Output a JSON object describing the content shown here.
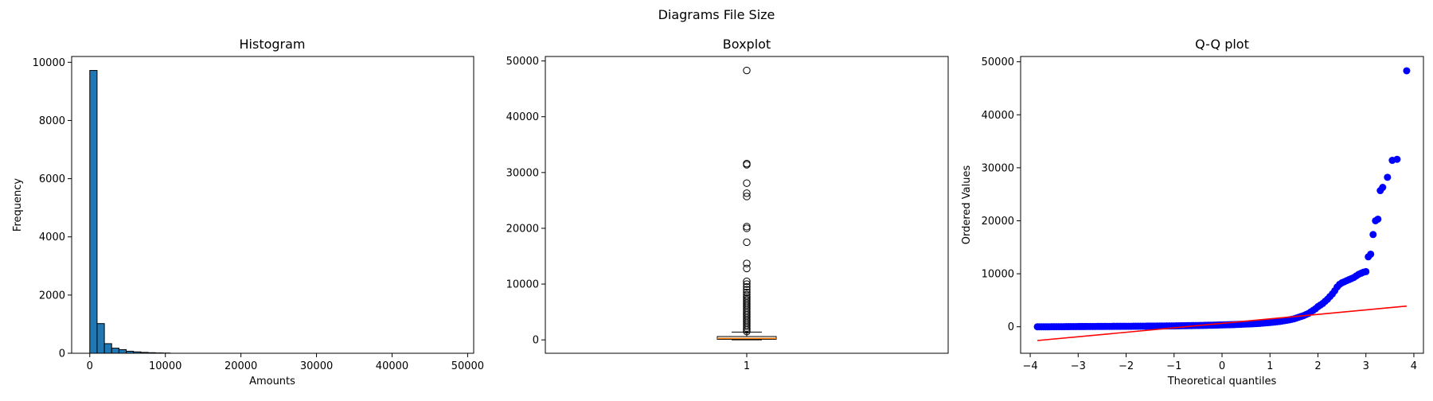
{
  "figure": {
    "suptitle": "Diagrams File Size"
  },
  "chart_data": [
    {
      "type": "bar",
      "title": "Histogram",
      "xlabel": "Amounts",
      "ylabel": "Frequency",
      "xlim": [
        -2400,
        50800
      ],
      "ylim": [
        0,
        10200
      ],
      "xticks": [
        0,
        10000,
        20000,
        30000,
        40000,
        50000
      ],
      "yticks": [
        0,
        2000,
        4000,
        6000,
        8000,
        10000
      ],
      "bin_width": 965,
      "bin_start": 0,
      "values": [
        9720,
        1020,
        330,
        175,
        125,
        70,
        48,
        30,
        20,
        12,
        8
      ],
      "bar_color": "#1f77b4",
      "edge_color": "#000000",
      "grid": false
    },
    {
      "type": "boxplot",
      "title": "Boxplot",
      "xlabel": "",
      "ylabel": "",
      "categories": [
        "1"
      ],
      "ylim": [
        -2400,
        50800
      ],
      "yticks": [
        0,
        10000,
        20000,
        30000,
        40000,
        50000
      ],
      "box": {
        "q1": 100,
        "median": 250,
        "q3": 600,
        "whisker_low": 0,
        "whisker_high": 1400
      },
      "outliers": [
        1500,
        1800,
        2100,
        2400,
        2700,
        3000,
        3300,
        3600,
        3900,
        4200,
        4500,
        4800,
        5100,
        5400,
        5700,
        6000,
        6300,
        6600,
        6900,
        7200,
        7500,
        7800,
        8100,
        8500,
        9000,
        9500,
        10000,
        10500,
        12800,
        13700,
        17500,
        20000,
        20300,
        25700,
        26300,
        28100,
        31400,
        31600,
        48300
      ],
      "box_color": "#000000",
      "median_color": "#ff7f0e",
      "grid": false
    },
    {
      "type": "scatter",
      "title": "Q-Q plot",
      "xlabel": "Theoretical quantiles",
      "ylabel": "Ordered Values",
      "xlim": [
        -4.2,
        4.2
      ],
      "ylim": [
        -5000,
        51000
      ],
      "xticks": [
        -4,
        -3,
        -2,
        -1,
        0,
        1,
        2,
        3,
        4
      ],
      "yticks": [
        0,
        10000,
        20000,
        30000,
        40000,
        50000
      ],
      "points": {
        "x": [
          -3.85,
          -3.6,
          -3.45,
          -3.3,
          -3.15,
          -3.0,
          -2.8,
          -2.6,
          -2.4,
          -2.2,
          -2.0,
          -1.8,
          -1.6,
          -1.4,
          -1.2,
          -1.0,
          -0.8,
          -0.6,
          -0.4,
          -0.2,
          0.0,
          0.2,
          0.4,
          0.6,
          0.8,
          1.0,
          1.1,
          1.2,
          1.3,
          1.4,
          1.5,
          1.6,
          1.7,
          1.8,
          1.85,
          1.9,
          1.95,
          2.0,
          2.05,
          2.1,
          2.15,
          2.2,
          2.25,
          2.3,
          2.35,
          2.4,
          2.45,
          2.5,
          2.55,
          2.6,
          2.65,
          2.7,
          2.75,
          2.8,
          2.85,
          2.9,
          2.95,
          3.0,
          3.05,
          3.1,
          3.15,
          3.2,
          3.25,
          3.3,
          3.35,
          3.45,
          3.55,
          3.65,
          3.85
        ],
        "y": [
          0,
          0,
          10,
          20,
          30,
          40,
          50,
          60,
          70,
          80,
          90,
          100,
          110,
          130,
          150,
          170,
          200,
          230,
          260,
          300,
          350,
          400,
          470,
          550,
          650,
          800,
          900,
          1000,
          1150,
          1300,
          1500,
          1800,
          2100,
          2500,
          2800,
          3100,
          3400,
          3800,
          4100,
          4400,
          4800,
          5200,
          5700,
          6200,
          6800,
          7500,
          8000,
          8300,
          8500,
          8700,
          8900,
          9100,
          9300,
          9600,
          9900,
          10100,
          10300,
          10400,
          13200,
          13700,
          17400,
          20000,
          20300,
          25700,
          26300,
          28200,
          31400,
          31600,
          48300
        ],
        "color": "#0000ff"
      },
      "fit_line": {
        "x": [
          -3.85,
          3.85
        ],
        "y": [
          -2600,
          3900
        ],
        "color": "#ff0000"
      },
      "grid": false
    }
  ]
}
